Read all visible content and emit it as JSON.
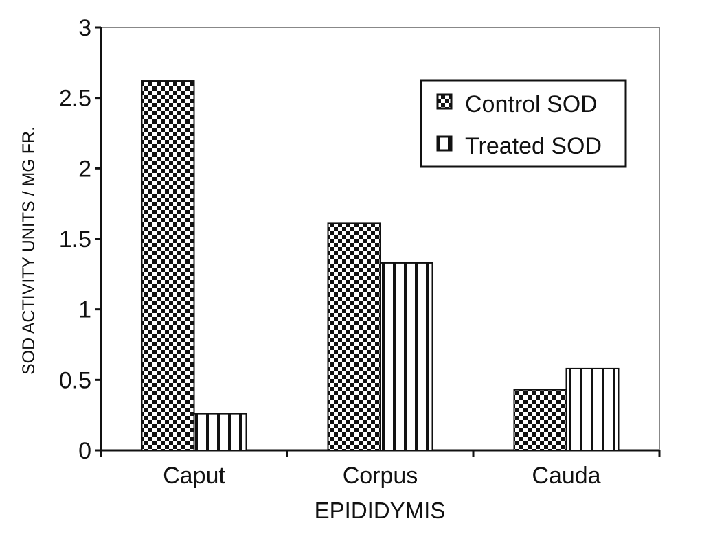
{
  "chart_data": {
    "type": "bar",
    "title": "",
    "xlabel": "EPIDIDYMIS",
    "ylabel": "SOD ACTIVITY UNITS / MG FR.",
    "categories": [
      "Caput",
      "Corpus",
      "Cauda"
    ],
    "series": [
      {
        "name": "Control SOD",
        "values": [
          2.62,
          1.61,
          0.43
        ],
        "pattern": "checker"
      },
      {
        "name": "Treated SOD",
        "values": [
          0.26,
          1.33,
          0.58
        ],
        "pattern": "vertical-stripes"
      }
    ],
    "ylim": [
      0,
      3
    ],
    "yticks": [
      "0",
      "0.5",
      "1",
      "1.5",
      "2",
      "2.5",
      "3"
    ],
    "grid": false,
    "legend_position": "top-right",
    "colors": {
      "ink": "#111111",
      "background": "#ffffff"
    }
  }
}
